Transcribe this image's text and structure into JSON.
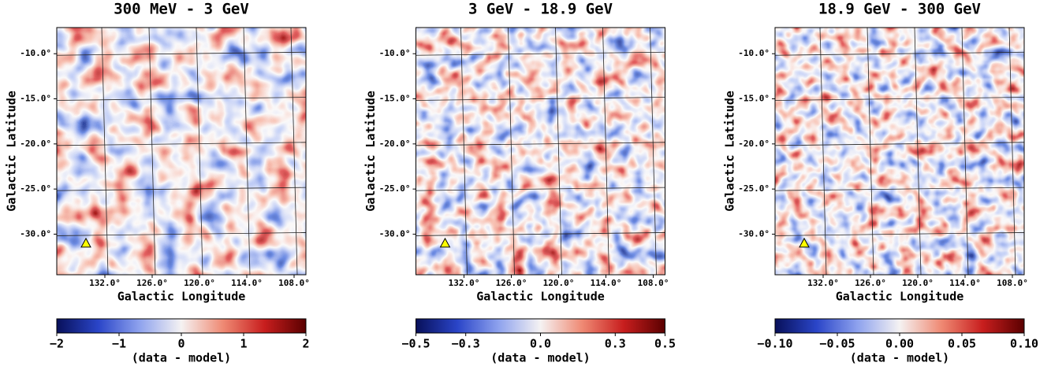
{
  "chart_data": [
    {
      "type": "heatmap",
      "title": "300 MeV - 3 GeV",
      "xlabel": "Galactic Longitude",
      "ylabel": "Galactic Latitude",
      "xlim": [
        138.1,
        106.5
      ],
      "ylim": [
        -34.5,
        -7.1
      ],
      "xticks": [
        {
          "value": 132,
          "label": "132.0°"
        },
        {
          "value": 126,
          "label": "126.0°"
        },
        {
          "value": 120,
          "label": "120.0°"
        },
        {
          "value": 114,
          "label": "114.0°"
        },
        {
          "value": 108,
          "label": "108.0°"
        }
      ],
      "yticks": [
        {
          "value": -10,
          "label": "-10.0°"
        },
        {
          "value": -15,
          "label": "-15.0°"
        },
        {
          "value": -20,
          "label": "-20.0°"
        },
        {
          "value": -25,
          "label": "-25.0°"
        },
        {
          "value": -30,
          "label": "-30.0°"
        }
      ],
      "grid": true,
      "marker": {
        "x": 134.4,
        "y": -31.0,
        "color": "#ffff00"
      },
      "colorbar": {
        "label": "(data - model)",
        "lim": [
          -2,
          2
        ],
        "ticks": [
          {
            "value": -2,
            "label": "−2"
          },
          {
            "value": -1,
            "label": "−1"
          },
          0,
          1,
          2
        ]
      },
      "colormap": [
        "#08105a",
        "#2a45c8",
        "#8fa3ee",
        "#f5f2f2",
        "#ef8a74",
        "#c81e1e",
        "#5a0000"
      ]
    },
    {
      "type": "heatmap",
      "title": "3 GeV - 18.9 GeV",
      "xlabel": "Galactic Longitude",
      "ylabel": "Galactic Latitude",
      "xlim": [
        138.1,
        106.5
      ],
      "ylim": [
        -34.5,
        -7.1
      ],
      "xticks": [
        {
          "value": 132,
          "label": "132.0°"
        },
        {
          "value": 126,
          "label": "126.0°"
        },
        {
          "value": 120,
          "label": "120.0°"
        },
        {
          "value": 114,
          "label": "114.0°"
        },
        {
          "value": 108,
          "label": "108.0°"
        }
      ],
      "yticks": [
        {
          "value": -10,
          "label": "-10.0°"
        },
        {
          "value": -15,
          "label": "-15.0°"
        },
        {
          "value": -20,
          "label": "-20.0°"
        },
        {
          "value": -25,
          "label": "-25.0°"
        },
        {
          "value": -30,
          "label": "-30.0°"
        }
      ],
      "grid": true,
      "marker": {
        "x": 134.4,
        "y": -31.0,
        "color": "#ffff00"
      },
      "colorbar": {
        "label": "(data - model)",
        "lim": [
          -0.5,
          0.5
        ],
        "ticks": [
          {
            "value": -0.5,
            "label": "−0.5"
          },
          {
            "value": -0.3,
            "label": "−0.3"
          },
          {
            "value": 0,
            "label": "0.0"
          },
          0.3,
          0.5
        ]
      },
      "colormap": [
        "#08105a",
        "#2a45c8",
        "#8fa3ee",
        "#f5f2f2",
        "#ef8a74",
        "#c81e1e",
        "#5a0000"
      ]
    },
    {
      "type": "heatmap",
      "title": "18.9 GeV - 300 GeV",
      "xlabel": "Galactic Longitude",
      "ylabel": "Galactic Latitude",
      "xlim": [
        138.1,
        106.5
      ],
      "ylim": [
        -34.5,
        -7.1
      ],
      "xticks": [
        {
          "value": 132,
          "label": "132.0°"
        },
        {
          "value": 126,
          "label": "126.0°"
        },
        {
          "value": 120,
          "label": "120.0°"
        },
        {
          "value": 114,
          "label": "114.0°"
        },
        {
          "value": 108,
          "label": "108.0°"
        }
      ],
      "yticks": [
        {
          "value": -10,
          "label": "-10.0°"
        },
        {
          "value": -15,
          "label": "-15.0°"
        },
        {
          "value": -20,
          "label": "-20.0°"
        },
        {
          "value": -25,
          "label": "-25.0°"
        },
        {
          "value": -30,
          "label": "-30.0°"
        }
      ],
      "grid": true,
      "marker": {
        "x": 134.4,
        "y": -31.0,
        "color": "#ffff00"
      },
      "colorbar": {
        "label": "(data - model)",
        "lim": [
          -0.1,
          0.1
        ],
        "ticks": [
          {
            "value": -0.1,
            "label": "−0.10"
          },
          {
            "value": -0.05,
            "label": "−0.05"
          },
          {
            "value": 0,
            "label": "0.00"
          },
          {
            "value": 0.05,
            "label": "0.05"
          },
          {
            "value": 0.1,
            "label": "0.10"
          }
        ]
      },
      "colormap": [
        "#08105a",
        "#2a45c8",
        "#8fa3ee",
        "#f5f2f2",
        "#ef8a74",
        "#c81e1e",
        "#5a0000"
      ]
    }
  ]
}
